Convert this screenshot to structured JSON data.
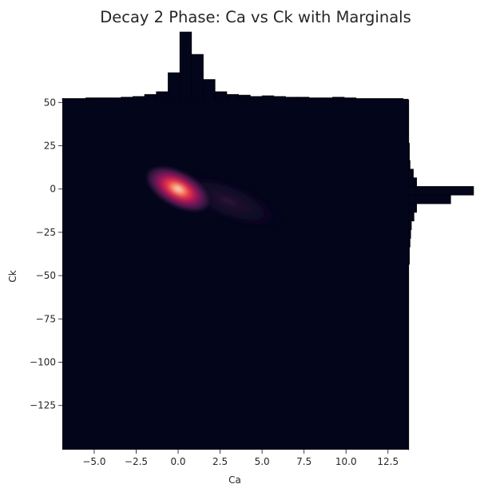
{
  "chart_data": {
    "type": "heatmap",
    "title": "Decay 2 Phase: Ca vs Ck with Marginals",
    "xlabel": "Ca",
    "ylabel": "Ck",
    "xlim": [
      -6.9,
      13.7
    ],
    "ylim": [
      -150.5,
      51.5
    ],
    "x_ticks": [
      -5.0,
      -2.5,
      0.0,
      2.5,
      5.0,
      7.5,
      10.0,
      12.5
    ],
    "x_tick_labels": [
      "−5.0",
      "−2.5",
      "0.0",
      "2.5",
      "5.0",
      "7.5",
      "10.0",
      "12.5"
    ],
    "y_ticks": [
      50,
      25,
      0,
      -25,
      -50,
      -75,
      -100,
      -125
    ],
    "y_tick_labels": [
      "50",
      "25",
      "0",
      "−25",
      "−50",
      "−75",
      "−100",
      "−125"
    ],
    "density_peak": {
      "x": 0.0,
      "y": 0.0
    },
    "density_tail_direction": {
      "x": 3.0,
      "y": -7.0
    },
    "colormap": "rocket",
    "background_color": "#03051a",
    "marginal_bar_color": "#03051a",
    "top_marginal": {
      "edges": [
        -6.9,
        -6.2,
        -5.5,
        -4.8,
        -4.1,
        -3.4,
        -2.7,
        -2.0,
        -1.3,
        -0.6,
        0.1,
        0.8,
        1.5,
        2.2,
        2.9,
        3.6,
        4.3,
        5.0,
        5.7,
        6.4,
        7.1,
        7.8,
        8.5,
        9.2,
        9.9,
        10.6,
        11.3,
        12.0,
        12.7,
        13.4,
        13.7
      ],
      "values": [
        2,
        2,
        3,
        3,
        3,
        4,
        5,
        8,
        12,
        40,
        100,
        67,
        30,
        12,
        8,
        7,
        5,
        6,
        5,
        4,
        4,
        3,
        3,
        4,
        3,
        2,
        2,
        2,
        2,
        1
      ]
    },
    "right_marginal": {
      "edges": [
        51.5,
        46.5,
        41.5,
        36.5,
        31.5,
        26.5,
        21.5,
        16.5,
        11.5,
        6.5,
        1.5,
        -3.5,
        -8.5,
        -13.5,
        -18.5,
        -23.5,
        -28.5,
        -33.5,
        -38.5,
        -43.5,
        -48.5,
        -53.5,
        -58.5,
        -63.5,
        -150.5
      ],
      "values": [
        1,
        1,
        1,
        1,
        1,
        2,
        2,
        3,
        8,
        13,
        100,
        65,
        13,
        9,
        5,
        4,
        3,
        2,
        2,
        1,
        1,
        1,
        1,
        1
      ]
    }
  }
}
